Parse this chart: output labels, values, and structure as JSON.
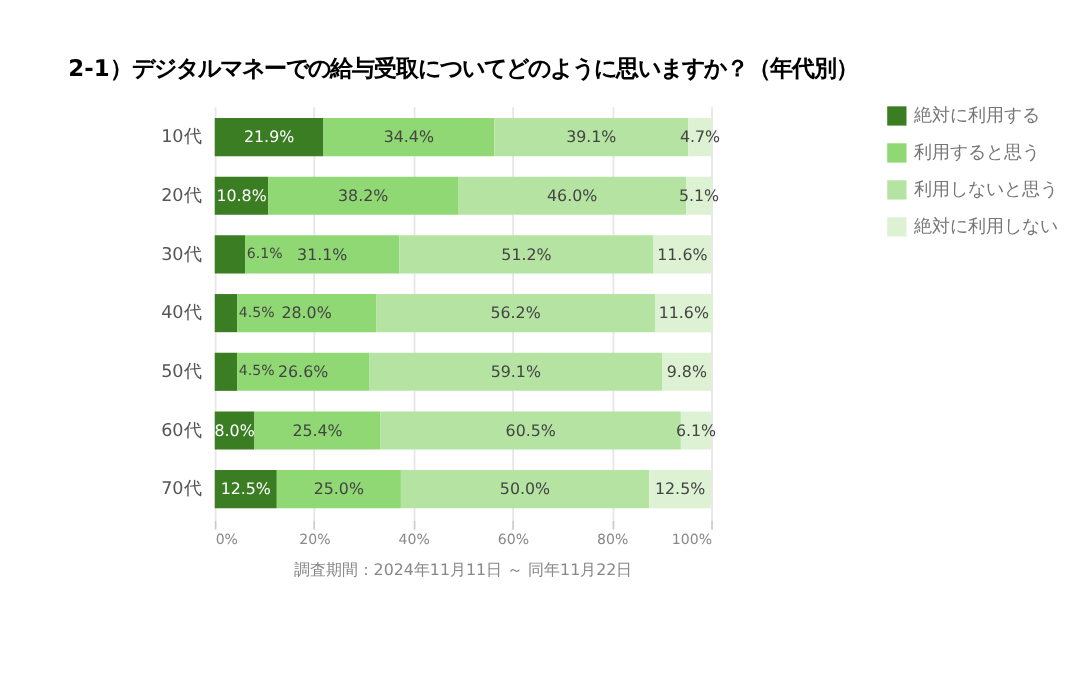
{
  "chart_data": {
    "type": "bar",
    "orientation": "horizontal",
    "stacked": true,
    "title": "2-1）デジタルマネーでの給与受取についてどのように思いますか？（年代別）",
    "categories": [
      "10代",
      "20代",
      "30代",
      "40代",
      "50代",
      "60代",
      "70代"
    ],
    "series": [
      {
        "name": "絶対に利用する",
        "color": "#3b7d23",
        "values": [
          21.9,
          10.8,
          6.1,
          4.5,
          4.5,
          8.0,
          12.5
        ],
        "value_labels": [
          "21.9%",
          "10.8%",
          "6.1%",
          "4.5%",
          "4.5%",
          "8.0%",
          "12.5%"
        ]
      },
      {
        "name": "利用すると思う",
        "color": "#8fd873",
        "values": [
          34.4,
          38.2,
          31.1,
          28.0,
          26.6,
          25.4,
          25.0
        ],
        "value_labels": [
          "34.4%",
          "38.2%",
          "31.1%",
          "28.0%",
          "26.6%",
          "25.4%",
          "25.0%"
        ]
      },
      {
        "name": "利用しないと思う",
        "color": "#b5e4a2",
        "values": [
          39.1,
          46.0,
          51.2,
          56.2,
          59.1,
          60.5,
          50.0
        ],
        "value_labels": [
          "39.1%",
          "46.0%",
          "51.2%",
          "56.2%",
          "59.1%",
          "60.5%",
          "50.0%"
        ]
      },
      {
        "name": "絶対に利用しない",
        "color": "#dcf2d2",
        "values": [
          4.7,
          5.1,
          11.6,
          11.6,
          9.8,
          6.1,
          12.5
        ],
        "value_labels": [
          "4.7%",
          "5.1%",
          "11.6%",
          "11.6%",
          "9.8%",
          "6.1%",
          "12.5%"
        ]
      }
    ],
    "xlim": [
      0,
      100
    ],
    "xticks": [
      {
        "value": 0,
        "label": "0%"
      },
      {
        "value": 20,
        "label": "20%"
      },
      {
        "value": 40,
        "label": "40%"
      },
      {
        "value": 60,
        "label": "60%"
      },
      {
        "value": 80,
        "label": "80%"
      },
      {
        "value": 100,
        "label": "100%"
      }
    ],
    "grid": "x",
    "legend": "right",
    "annotations": [
      "調査期間：2024年11月11日 ～ 同年11月22日"
    ]
  }
}
